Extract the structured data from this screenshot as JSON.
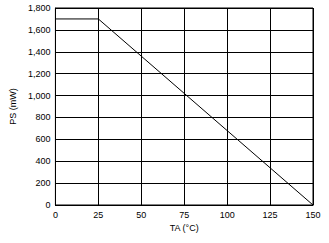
{
  "chart_data": {
    "type": "line",
    "x": [
      0,
      25,
      150
    ],
    "values": [
      1700,
      1700,
      0
    ],
    "color": "#000000",
    "xlabel": "TA (°C)",
    "ylabel": "PS (mW)",
    "xlim": [
      0,
      150
    ],
    "xticks": [
      0,
      25,
      50,
      75,
      100,
      125,
      150
    ],
    "ylim": [
      0,
      1800
    ],
    "yticks": [
      0,
      200,
      400,
      600,
      800,
      1000,
      1200,
      1400,
      1600,
      1800
    ],
    "grid": true
  }
}
